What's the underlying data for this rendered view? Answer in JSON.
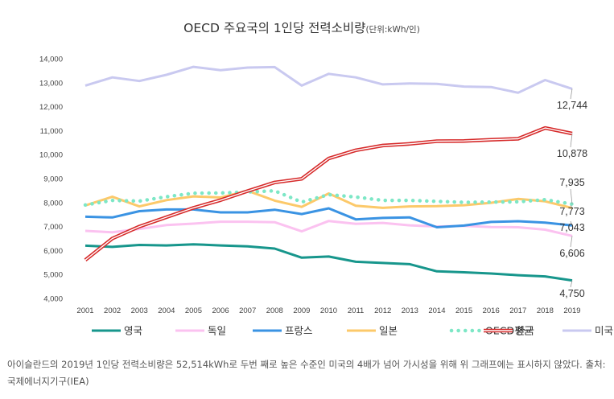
{
  "chart_data": {
    "type": "line",
    "title": "OECD 주요국의 1인당 전력소비량",
    "subtitle": "(단위:kWh/인)",
    "xlabel": "",
    "ylabel": "",
    "ylim": [
      4000,
      14000
    ],
    "yticks": [
      "4,000",
      "5,000",
      "6,000",
      "7,000",
      "8,000",
      "9,000",
      "10,000",
      "11,000",
      "12,000",
      "13,000",
      "14,000"
    ],
    "categories": [
      "2001",
      "2002",
      "2003",
      "2004",
      "2005",
      "2006",
      "2007",
      "2008",
      "2009",
      "2010",
      "2011",
      "2012",
      "2013",
      "2014",
      "2015",
      "2016",
      "2017",
      "2018",
      "2019"
    ],
    "series": [
      {
        "name": "영국",
        "color": "#17968c",
        "style": "solid",
        "values": [
          6200,
          6150,
          6230,
          6210,
          6260,
          6210,
          6170,
          6080,
          5700,
          5750,
          5530,
          5480,
          5430,
          5130,
          5090,
          5040,
          4970,
          4920,
          4750
        ],
        "end_label": "4,750"
      },
      {
        "name": "독일",
        "color": "#fbc2f0",
        "style": "solid",
        "values": [
          6820,
          6760,
          6900,
          7060,
          7120,
          7200,
          7200,
          7180,
          6800,
          7230,
          7110,
          7150,
          7050,
          7000,
          7030,
          6980,
          6970,
          6870,
          6606
        ],
        "end_label": "6,606"
      },
      {
        "name": "프랑스",
        "color": "#3a93e3",
        "style": "solid",
        "values": [
          7410,
          7380,
          7640,
          7710,
          7710,
          7590,
          7590,
          7700,
          7520,
          7760,
          7300,
          7360,
          7380,
          6970,
          7040,
          7190,
          7220,
          7160,
          7043
        ],
        "end_label": "7,043"
      },
      {
        "name": "일본",
        "color": "#fcc96a",
        "style": "solid",
        "values": [
          7880,
          8240,
          7840,
          8100,
          8260,
          8210,
          8490,
          8080,
          7820,
          8380,
          7870,
          7780,
          7840,
          7850,
          7890,
          7990,
          8150,
          8050,
          7773
        ],
        "end_label": "7,773"
      },
      {
        "name": "OECD평균",
        "color": "#7de7c6",
        "style": "dotted",
        "values": [
          7900,
          8090,
          8060,
          8240,
          8390,
          8400,
          8440,
          8490,
          8020,
          8330,
          8230,
          8090,
          8090,
          8050,
          8010,
          8020,
          8030,
          8120,
          7935
        ],
        "end_label": "7,935"
      },
      {
        "name": "한국",
        "color": "#d62a2a",
        "style": "double",
        "values": [
          5600,
          6500,
          7000,
          7390,
          7780,
          8100,
          8480,
          8840,
          8990,
          9840,
          10180,
          10380,
          10450,
          10560,
          10570,
          10620,
          10660,
          11110,
          10878
        ],
        "end_label": "10,878"
      },
      {
        "name": "미국",
        "color": "#c9c9f0",
        "style": "solid",
        "values": [
          12880,
          13220,
          13070,
          13330,
          13660,
          13520,
          13630,
          13650,
          12880,
          13370,
          13220,
          12930,
          12970,
          12950,
          12840,
          12820,
          12580,
          13110,
          12744
        ],
        "end_label": "12,744"
      }
    ]
  },
  "footnote": "아이슬란드의 2019년 1인당 전력소비량은 52,514kWh로 두번 째로 높은 수준인 미국의 4배가 넘어 가시성을 위해 위 그래프에는 표시하지 않았다. 출처: 국제에너지기구(IEA)"
}
